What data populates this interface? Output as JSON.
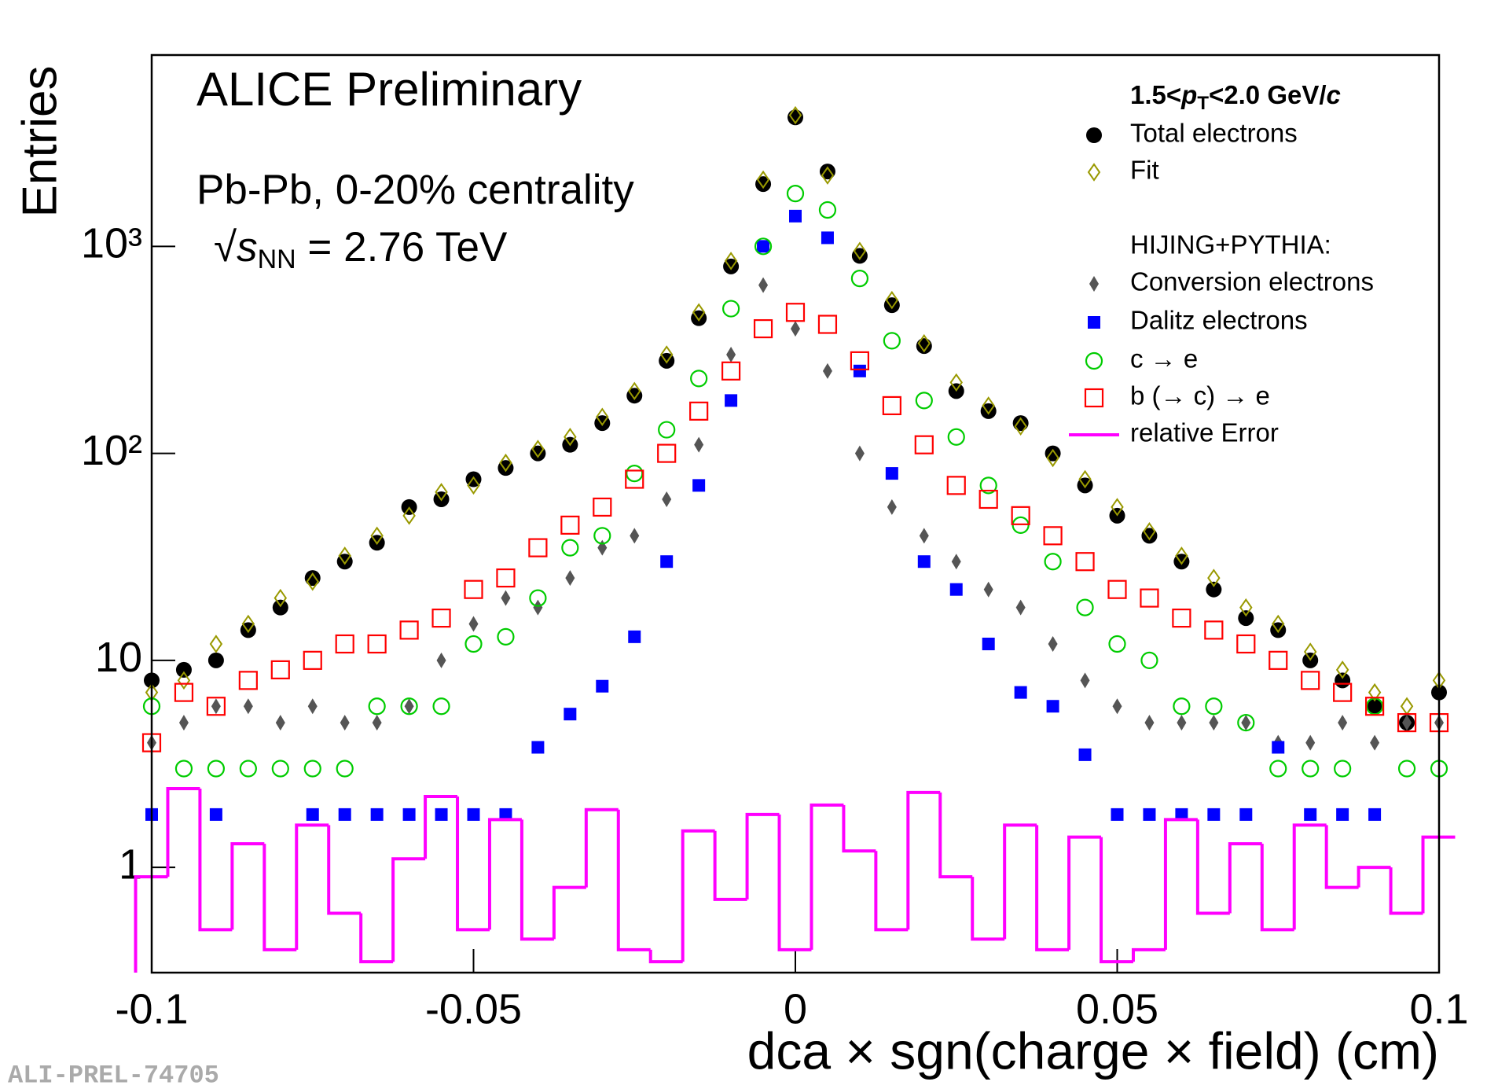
{
  "chart_data": {
    "type": "scatter",
    "ylog": true,
    "xlabel": "dca × sgn(charge × field) (cm)",
    "ylabel": "Entries",
    "annotations": [
      "ALICE Preliminary",
      "Pb-Pb, 0-20% centrality"
    ],
    "energy_label": [
      "√",
      "s",
      "NN",
      " = 2.76 TeV"
    ],
    "legend_header": [
      "1.5<",
      "p",
      "T",
      "<2.0 GeV/",
      "c"
    ],
    "legend_group_label": "HIJING+PYTHIA:",
    "watermark": "ALI-PREL-74705",
    "xlim": [
      -0.1,
      0.1
    ],
    "ylim": [
      0.31,
      8400
    ],
    "xticks": [
      -0.1,
      -0.05,
      0,
      0.05,
      0.1
    ],
    "yticks": [
      1,
      10,
      {
        "value": 100,
        "label": "10²"
      },
      {
        "value": 1000,
        "label": "10³"
      }
    ],
    "x": [
      -0.1,
      -0.095,
      -0.09,
      -0.085,
      -0.08,
      -0.075,
      -0.07,
      -0.065,
      -0.06,
      -0.055,
      -0.05,
      -0.045,
      -0.04,
      -0.035,
      -0.03,
      -0.025,
      -0.02,
      -0.015,
      -0.01,
      -0.005,
      0,
      0.005,
      0.01,
      0.015,
      0.02,
      0.025,
      0.03,
      0.035,
      0.04,
      0.045,
      0.05,
      0.055,
      0.06,
      0.065,
      0.07,
      0.075,
      0.08,
      0.085,
      0.09,
      0.095,
      0.1
    ],
    "series": [
      {
        "name": "Total electrons",
        "color": "#000000",
        "marker": "circle-filled",
        "values": [
          8,
          9,
          10,
          14,
          18,
          25,
          30,
          37,
          55,
          60,
          75,
          85,
          100,
          110,
          140,
          190,
          280,
          450,
          800,
          2000,
          4200,
          2300,
          900,
          520,
          330,
          200,
          160,
          140,
          100,
          70,
          50,
          40,
          30,
          22,
          16,
          14,
          10,
          8,
          6,
          5,
          7
        ]
      },
      {
        "name": "Fit",
        "color": "#999900",
        "marker": "diamond-open",
        "values": [
          7,
          8,
          12,
          15,
          20,
          24,
          32,
          40,
          50,
          65,
          70,
          90,
          105,
          120,
          150,
          200,
          300,
          480,
          850,
          2100,
          4300,
          2200,
          950,
          550,
          340,
          220,
          170,
          135,
          95,
          75,
          55,
          42,
          32,
          25,
          18,
          15,
          11,
          9,
          7,
          6,
          8
        ]
      },
      {
        "name": "Conversion electrons",
        "color": "#555555",
        "marker": "diamond-filled",
        "values": [
          4,
          5,
          6,
          6,
          5,
          6,
          5,
          5,
          6,
          10,
          15,
          20,
          18,
          25,
          35,
          40,
          60,
          110,
          300,
          650,
          400,
          250,
          100,
          55,
          40,
          30,
          22,
          18,
          12,
          8,
          6,
          5,
          5,
          5,
          5,
          4,
          4,
          5,
          4,
          5,
          5
        ]
      },
      {
        "name": "Dalitz electrons",
        "color": "#0000ff",
        "marker": "square-filled",
        "values": [
          1.8,
          null,
          1.8,
          null,
          null,
          1.8,
          1.8,
          1.8,
          1.8,
          1.8,
          1.8,
          1.8,
          3.8,
          5.5,
          7.5,
          13,
          30,
          70,
          180,
          1000,
          1400,
          1100,
          250,
          80,
          30,
          22,
          12,
          7,
          6,
          3.5,
          1.8,
          1.8,
          1.8,
          1.8,
          1.8,
          3.8,
          1.8,
          1.8,
          1.8,
          null,
          null
        ]
      },
      {
        "name": "c → e",
        "color": "#00cc00",
        "marker": "circle-open",
        "values": [
          6,
          3,
          3,
          3,
          3,
          3,
          3,
          6,
          6,
          6,
          12,
          13,
          20,
          35,
          40,
          80,
          130,
          230,
          500,
          1000,
          1800,
          1500,
          700,
          350,
          180,
          120,
          70,
          45,
          30,
          18,
          12,
          10,
          6,
          6,
          5,
          3,
          3,
          3,
          6,
          3,
          3
        ]
      },
      {
        "name": "b (→ c) → e",
        "color": "#ff0000",
        "marker": "square-open",
        "values": [
          4,
          7,
          6,
          8,
          9,
          10,
          12,
          12,
          14,
          16,
          22,
          25,
          35,
          45,
          55,
          75,
          100,
          160,
          250,
          400,
          480,
          420,
          280,
          170,
          110,
          70,
          60,
          50,
          40,
          30,
          22,
          20,
          16,
          14,
          12,
          10,
          8,
          7,
          6,
          5,
          5
        ]
      },
      {
        "name": "relative Error",
        "color": "#ff00ff",
        "marker": "step",
        "values": [
          0.9,
          2.4,
          0.5,
          1.3,
          0.4,
          1.6,
          0.6,
          0.35,
          1.1,
          2.2,
          0.5,
          1.7,
          0.45,
          0.8,
          1.9,
          0.4,
          0.35,
          1.5,
          0.7,
          1.8,
          0.4,
          2.0,
          1.2,
          0.5,
          2.3,
          0.9,
          0.45,
          1.6,
          0.4,
          1.4,
          0.35,
          0.4,
          1.7,
          0.6,
          1.3,
          0.5,
          1.6,
          0.8,
          1.0,
          0.6,
          1.4
        ]
      }
    ]
  }
}
